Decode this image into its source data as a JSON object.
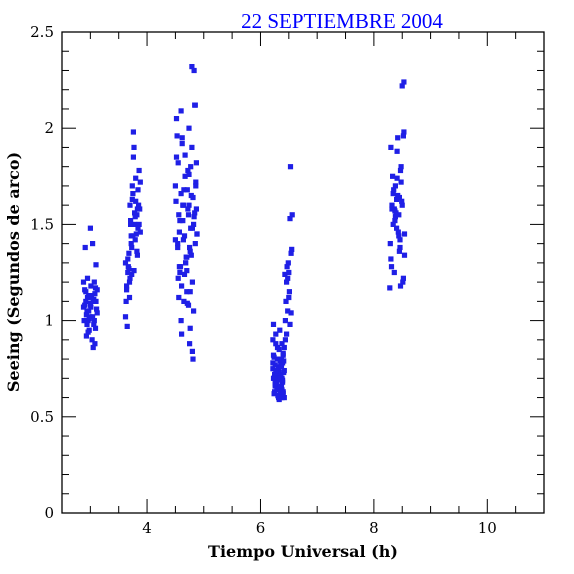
{
  "chart_data": {
    "type": "scatter",
    "title": "22 SEPTIEMBRE 2004",
    "xlabel": "Tiempo Universal (h)",
    "ylabel": "Seeing (Segundos de arco)",
    "xlim": [
      2.5,
      11
    ],
    "ylim": [
      0,
      2.5
    ],
    "xticks": [
      "4",
      "6",
      "8",
      "10"
    ],
    "yticks": [
      "0",
      "0.5",
      "1",
      "1.5",
      "2",
      "2.5"
    ],
    "grid": false,
    "marker_color": "#1f1fe6",
    "series": [
      {
        "x": [
          2.88,
          2.9,
          2.92,
          2.94,
          2.96,
          2.98,
          3.0,
          3.02,
          3.04,
          3.06,
          3.08,
          3.1,
          3.12,
          2.89,
          2.93,
          2.97,
          3.01,
          3.05,
          3.09,
          3.11,
          2.91,
          2.95,
          2.99,
          3.03,
          3.07,
          2.88,
          2.94,
          3.0,
          3.06,
          3.12,
          2.92,
          2.96,
          3.02,
          3.08,
          2.9,
          2.98,
          3.04,
          3.1,
          2.95,
          3.05,
          3.09,
          3.0,
          2.93,
          3.07,
          3.01,
          2.97,
          3.62,
          3.64,
          3.66,
          3.68,
          3.7,
          3.72,
          3.74,
          3.76,
          3.78,
          3.8,
          3.82,
          3.84,
          3.86,
          3.88,
          3.63,
          3.67,
          3.71,
          3.75,
          3.79,
          3.83,
          3.87,
          3.65,
          3.69,
          3.73,
          3.77,
          3.81,
          3.85,
          3.62,
          3.68,
          3.74,
          3.8,
          3.86,
          3.66,
          3.72,
          3.78,
          3.84,
          3.64,
          3.7,
          3.76,
          3.82,
          3.88,
          3.69,
          3.79,
          3.73,
          3.83,
          3.75,
          3.77,
          3.71,
          4.5,
          4.52,
          4.54,
          4.56,
          4.58,
          4.6,
          4.62,
          4.64,
          4.66,
          4.68,
          4.7,
          4.72,
          4.74,
          4.76,
          4.78,
          4.8,
          4.82,
          4.84,
          4.86,
          4.88,
          4.51,
          4.55,
          4.59,
          4.63,
          4.67,
          4.71,
          4.75,
          4.79,
          4.83,
          4.87,
          4.53,
          4.57,
          4.61,
          4.65,
          4.69,
          4.73,
          4.77,
          4.81,
          4.85,
          4.5,
          4.56,
          4.62,
          4.68,
          4.74,
          4.8,
          4.86,
          4.54,
          4.6,
          4.66,
          4.72,
          4.78,
          4.84,
          4.52,
          4.58,
          4.64,
          4.7,
          4.76,
          4.82,
          4.88,
          4.55,
          4.65,
          4.75,
          4.85,
          4.6,
          4.7,
          4.8,
          4.63,
          4.73,
          4.83,
          4.67,
          4.77,
          4.87,
          4.61,
          4.71,
          4.81,
          4.57,
          4.79,
          4.74,
          4.76,
          6.22,
          6.24,
          6.26,
          6.28,
          6.3,
          6.32,
          6.34,
          6.36,
          6.38,
          6.4,
          6.42,
          6.23,
          6.27,
          6.31,
          6.35,
          6.39,
          6.25,
          6.29,
          6.33,
          6.37,
          6.41,
          6.22,
          6.26,
          6.3,
          6.34,
          6.38,
          6.24,
          6.28,
          6.32,
          6.36,
          6.4,
          6.23,
          6.27,
          6.31,
          6.35,
          6.39,
          6.25,
          6.29,
          6.33,
          6.37,
          6.22,
          6.26,
          6.3,
          6.34,
          6.38,
          6.42,
          6.24,
          6.28,
          6.32,
          6.36,
          6.4,
          6.27,
          6.31,
          6.35,
          6.29,
          6.33,
          6.37,
          6.25,
          6.39,
          6.41,
          6.3,
          6.34,
          6.38,
          6.26,
          6.32,
          6.36,
          6.23,
          6.28,
          6.4,
          6.42,
          6.44,
          6.46,
          6.48,
          6.5,
          6.52,
          6.54,
          6.56,
          6.45,
          6.49,
          6.53,
          6.47,
          6.51,
          6.55,
          6.44,
          6.48,
          6.52,
          6.46,
          6.5,
          6.54,
          6.43,
          8.28,
          8.3,
          8.32,
          8.34,
          8.36,
          8.38,
          8.4,
          8.42,
          8.44,
          8.46,
          8.48,
          8.5,
          8.52,
          8.54,
          8.29,
          8.33,
          8.37,
          8.41,
          8.45,
          8.49,
          8.53,
          8.31,
          8.35,
          8.39,
          8.43,
          8.47,
          8.51,
          8.3,
          8.36,
          8.42,
          8.48,
          8.54,
          8.34,
          8.4,
          8.46,
          8.52,
          8.32,
          8.38,
          8.44,
          8.5,
          8.41,
          8.47,
          8.37,
          8.53,
          8.45
        ],
        "y": [
          1.2,
          1.16,
          1.1,
          1.05,
          1.0,
          0.95,
          1.08,
          1.13,
          1.02,
          0.98,
          1.14,
          1.1,
          1.16,
          1.0,
          0.92,
          1.05,
          1.18,
          1.1,
          0.96,
          1.06,
          1.38,
          1.12,
          1.02,
          0.9,
          1.2,
          1.07,
          0.98,
          1.48,
          1.11,
          1.04,
          1.15,
          0.94,
          1.12,
          0.88,
          1.08,
          1.01,
          1.4,
          1.29,
          1.22,
          0.86,
          1.17,
          1.09,
          1.03,
          1.0,
          1.07,
          1.13,
          1.3,
          1.18,
          1.25,
          1.35,
          1.6,
          1.44,
          1.7,
          1.98,
          1.5,
          1.62,
          1.55,
          1.48,
          1.78,
          1.72,
          1.1,
          1.28,
          1.52,
          1.66,
          1.42,
          1.34,
          1.58,
          0.97,
          1.2,
          1.38,
          1.9,
          1.45,
          1.6,
          1.02,
          1.27,
          1.63,
          1.74,
          1.5,
          1.32,
          1.4,
          1.56,
          1.68,
          1.16,
          1.22,
          1.85,
          1.36,
          1.46,
          1.12,
          1.54,
          1.24,
          1.58,
          1.44,
          1.26,
          1.5,
          1.7,
          1.85,
          1.4,
          1.55,
          1.25,
          2.09,
          1.95,
          1.6,
          1.44,
          1.3,
          1.15,
          1.78,
          2.0,
          1.36,
          1.65,
          1.2,
          1.5,
          2.12,
          1.72,
          1.45,
          1.62,
          1.82,
          1.28,
          1.52,
          1.75,
          1.09,
          1.38,
          1.9,
          2.3,
          1.58,
          1.96,
          1.46,
          1.18,
          1.68,
          1.33,
          1.55,
          1.8,
          1.64,
          2.12,
          1.42,
          1.12,
          1.92,
          1.3,
          1.6,
          1.48,
          1.7,
          1.38,
          1.66,
          1.24,
          1.58,
          1.34,
          1.56,
          2.05,
          1.52,
          1.42,
          1.26,
          0.96,
          1.05,
          1.45,
          1.22,
          1.1,
          0.88,
          1.4,
          1.0,
          1.33,
          0.84,
          1.6,
          1.08,
          1.54,
          1.86,
          1.48,
          1.82,
          0.93,
          1.68,
          0.8,
          1.28,
          2.32,
          1.76,
          1.15,
          0.75,
          0.7,
          0.68,
          0.72,
          0.8,
          0.65,
          0.76,
          0.62,
          0.7,
          0.82,
          0.6,
          0.98,
          0.88,
          0.74,
          0.69,
          0.78,
          0.63,
          0.71,
          0.85,
          0.66,
          0.73,
          0.9,
          0.77,
          0.64,
          0.7,
          0.6,
          0.81,
          0.67,
          0.73,
          0.76,
          0.62,
          0.7,
          0.74,
          0.61,
          0.79,
          0.68,
          0.72,
          0.65,
          0.59,
          0.8,
          0.78,
          0.66,
          0.86,
          0.7,
          0.64,
          0.74,
          0.62,
          0.68,
          0.75,
          0.72,
          0.83,
          0.93,
          0.61,
          0.63,
          0.7,
          0.66,
          0.76,
          0.71,
          0.69,
          0.79,
          0.73,
          0.95,
          0.88,
          0.67,
          0.6,
          0.77,
          0.82,
          0.74,
          0.63,
          0.86,
          0.9,
          1.2,
          1.05,
          1.25,
          0.98,
          1.35,
          1.55,
          1.1,
          1.3,
          1.8,
          1.28,
          1.15,
          1.37,
          1.0,
          1.22,
          1.53,
          0.93,
          1.12,
          1.04,
          1.24,
          1.17,
          1.32,
          1.58,
          1.66,
          1.25,
          1.7,
          1.48,
          1.95,
          1.55,
          1.38,
          1.8,
          1.6,
          1.22,
          1.45,
          1.4,
          1.75,
          1.52,
          1.88,
          1.36,
          1.62,
          1.98,
          1.28,
          1.68,
          1.56,
          1.46,
          1.78,
          1.2,
          1.9,
          1.58,
          1.65,
          1.72,
          1.34,
          1.5,
          1.63,
          1.42,
          1.96,
          1.6,
          1.54,
          1.44,
          2.22,
          1.74,
          1.18,
          1.57,
          2.24,
          1.64
        ]
      }
    ]
  }
}
